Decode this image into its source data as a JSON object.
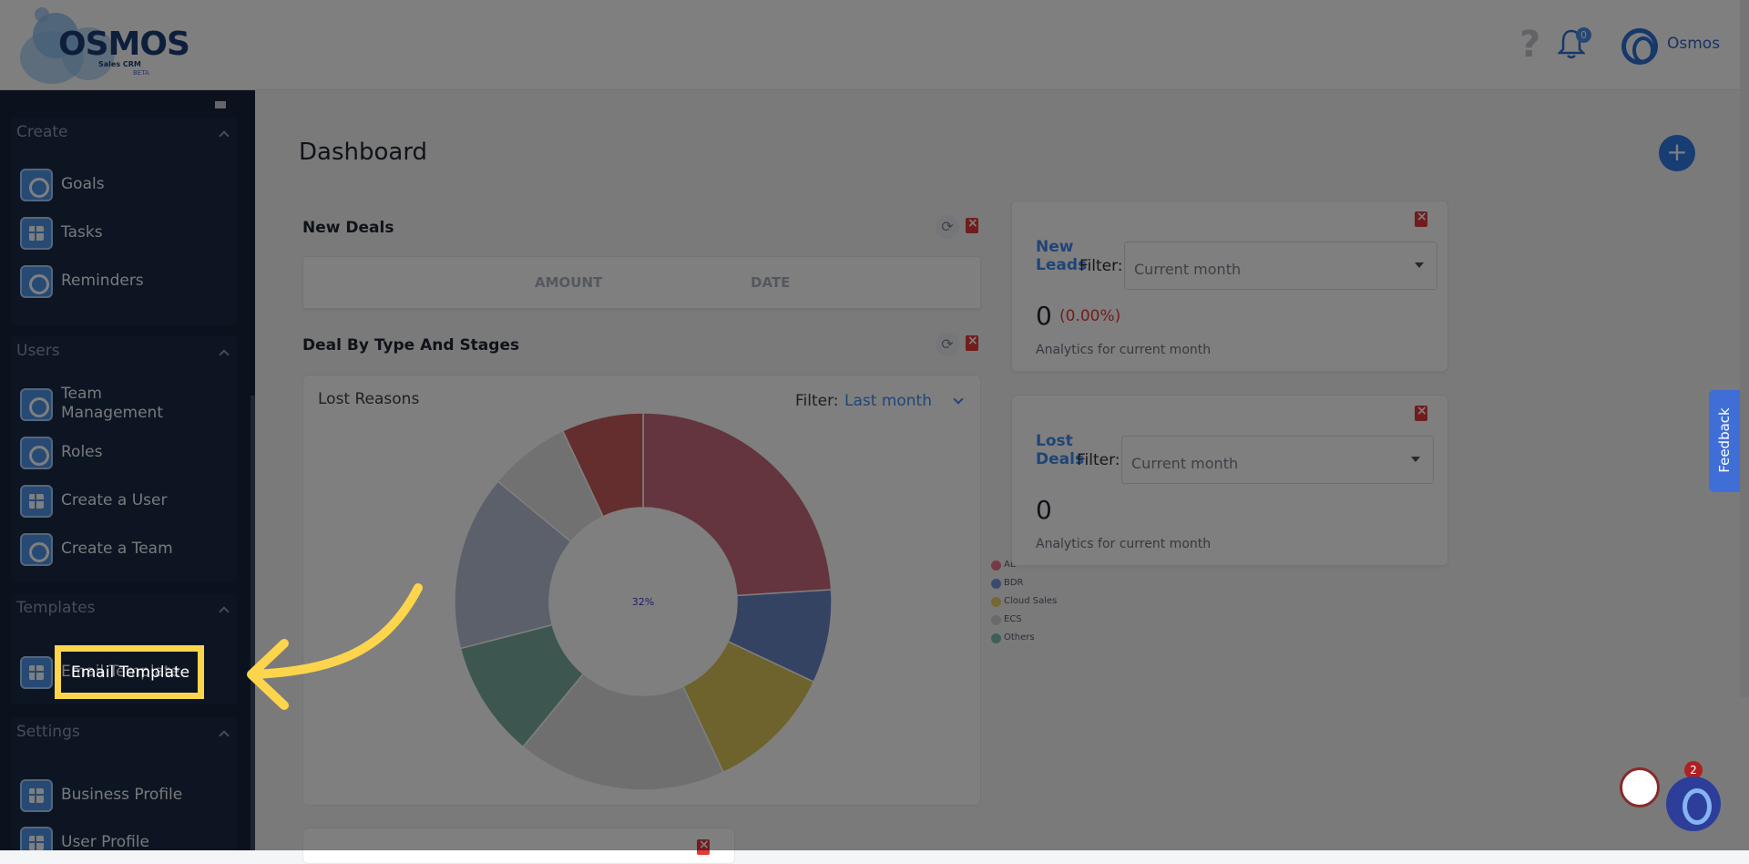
{
  "app": {
    "logo_text": "OSMOS",
    "logo_subtitle": "Sales CRM",
    "logo_badge": "BETA",
    "notification_count": "0",
    "user_name": "Osmos",
    "help_icon": "?"
  },
  "sidebar": {
    "sections": [
      {
        "title": "Create",
        "items": [
          {
            "label": "Goals",
            "icon": "target-icon"
          },
          {
            "label": "Tasks",
            "icon": "checklist-icon"
          },
          {
            "label": "Reminders",
            "icon": "bell-icon"
          }
        ]
      },
      {
        "title": "Users",
        "items": [
          {
            "label": "Team Management",
            "icon": "team-icon"
          },
          {
            "label": "Roles",
            "icon": "roles-icon"
          },
          {
            "label": "Create a User",
            "icon": "grid-icon"
          },
          {
            "label": "Create a Team",
            "icon": "team-gear-icon"
          }
        ]
      },
      {
        "title": "Templates",
        "items": [
          {
            "label": "Email Template",
            "icon": "document-icon"
          }
        ]
      },
      {
        "title": "Settings",
        "items": [
          {
            "label": "Business Profile",
            "icon": "document-icon"
          },
          {
            "label": "User Profile",
            "icon": "grid-icon"
          }
        ]
      }
    ]
  },
  "main": {
    "title": "Dashboard",
    "add_button": "+",
    "new_deals": {
      "title": "New Deals",
      "columns": [
        "AMOUNT",
        "DATE"
      ]
    },
    "deal_by_type": {
      "title": "Deal By Type And Stages",
      "subtitle": "Lost Reasons",
      "filter_label": "Filter:",
      "filter_value": "Last month"
    },
    "new_leads": {
      "title": "New Leads",
      "filter_label": "Filter:",
      "filter_value": "Current month",
      "count": "0",
      "percent": "(0.00%)",
      "note": "Analytics for current month"
    },
    "lost_deals": {
      "title": "Lost Deals",
      "filter_label": "Filter:",
      "filter_value": "Current month",
      "count": "0",
      "note": "Analytics for current month"
    }
  },
  "chart_data": {
    "type": "pie",
    "title": "",
    "center_label": "32%",
    "legend": [
      {
        "name": "AE",
        "color": "#e8748a"
      },
      {
        "name": "BDR",
        "color": "#7a93d8"
      },
      {
        "name": "Cloud Sales",
        "color": "#e8d06a"
      },
      {
        "name": "ECS",
        "color": "#d4d4d4"
      },
      {
        "name": "Others",
        "color": "#7dbfae"
      }
    ],
    "slices": [
      {
        "color": "#c96b7c",
        "value": 24
      },
      {
        "color": "#6b87c4",
        "value": 8
      },
      {
        "color": "#dcc55a",
        "value": 11
      },
      {
        "color": "#dedede",
        "value": 18
      },
      {
        "color": "#7aaea0",
        "value": 10
      },
      {
        "color": "#b7c1d6",
        "value": 15
      },
      {
        "color": "#e3e3e3",
        "value": 7
      },
      {
        "color": "#c85d5d",
        "value": 7
      }
    ]
  },
  "overlay": {
    "highlighted_label": "Email Template"
  },
  "feedback": {
    "label": "Feedback"
  },
  "chat": {
    "badge": "2"
  }
}
